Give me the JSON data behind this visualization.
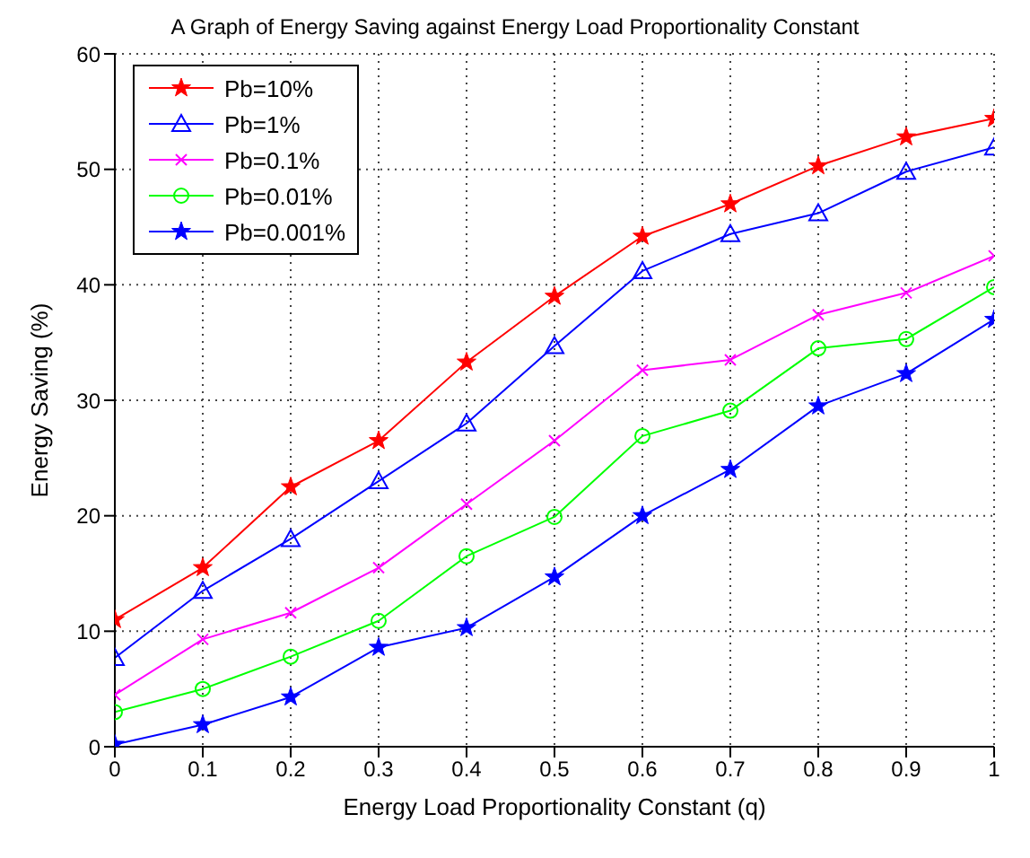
{
  "chart_data": {
    "type": "line",
    "title": "A Graph of Energy Saving against Energy Load Proportionality Constant",
    "xlabel": "Energy Load Proportionality Constant (q)",
    "ylabel": "Energy Saving (%)",
    "x": [
      0,
      0.1,
      0.2,
      0.3,
      0.4,
      0.5,
      0.6,
      0.7,
      0.8,
      0.9,
      1
    ],
    "xlim": [
      0,
      1
    ],
    "xticks": [
      0,
      0.1,
      0.2,
      0.3,
      0.4,
      0.5,
      0.6,
      0.7,
      0.8,
      0.9,
      1
    ],
    "ylim": [
      0,
      60
    ],
    "yticks": [
      0,
      10,
      20,
      30,
      40,
      50,
      60
    ],
    "grid": true,
    "legend": "top left",
    "line_style": "solid",
    "series": [
      {
        "name": "Pb=10%",
        "color": "#ff0000",
        "marker": "star",
        "values": [
          11,
          15.5,
          22.5,
          26.5,
          33.3,
          39,
          44.2,
          47,
          50.3,
          52.8,
          54.4
        ]
      },
      {
        "name": "Pb=1%",
        "color": "#0000ff",
        "marker": "triangle",
        "values": [
          7.7,
          13.5,
          18,
          23,
          28,
          34.7,
          41.2,
          44.4,
          46.2,
          49.8,
          51.9
        ]
      },
      {
        "name": "Pb=0.1%",
        "color": "#ff00ff",
        "marker": "cross",
        "values": [
          4.5,
          9.3,
          11.6,
          15.5,
          21,
          26.5,
          32.6,
          33.5,
          37.4,
          39.3,
          42.5
        ]
      },
      {
        "name": "Pb=0.01%",
        "color": "#00ff00",
        "marker": "circle",
        "values": [
          3,
          5,
          7.8,
          10.9,
          16.5,
          19.9,
          26.9,
          29.1,
          34.5,
          35.3,
          39.8
        ]
      },
      {
        "name": "Pb=0.001%",
        "color": "#0000ff",
        "marker": "star",
        "values": [
          0.2,
          1.9,
          4.3,
          8.6,
          10.3,
          14.7,
          20,
          24,
          29.5,
          32.3,
          37
        ]
      }
    ]
  }
}
